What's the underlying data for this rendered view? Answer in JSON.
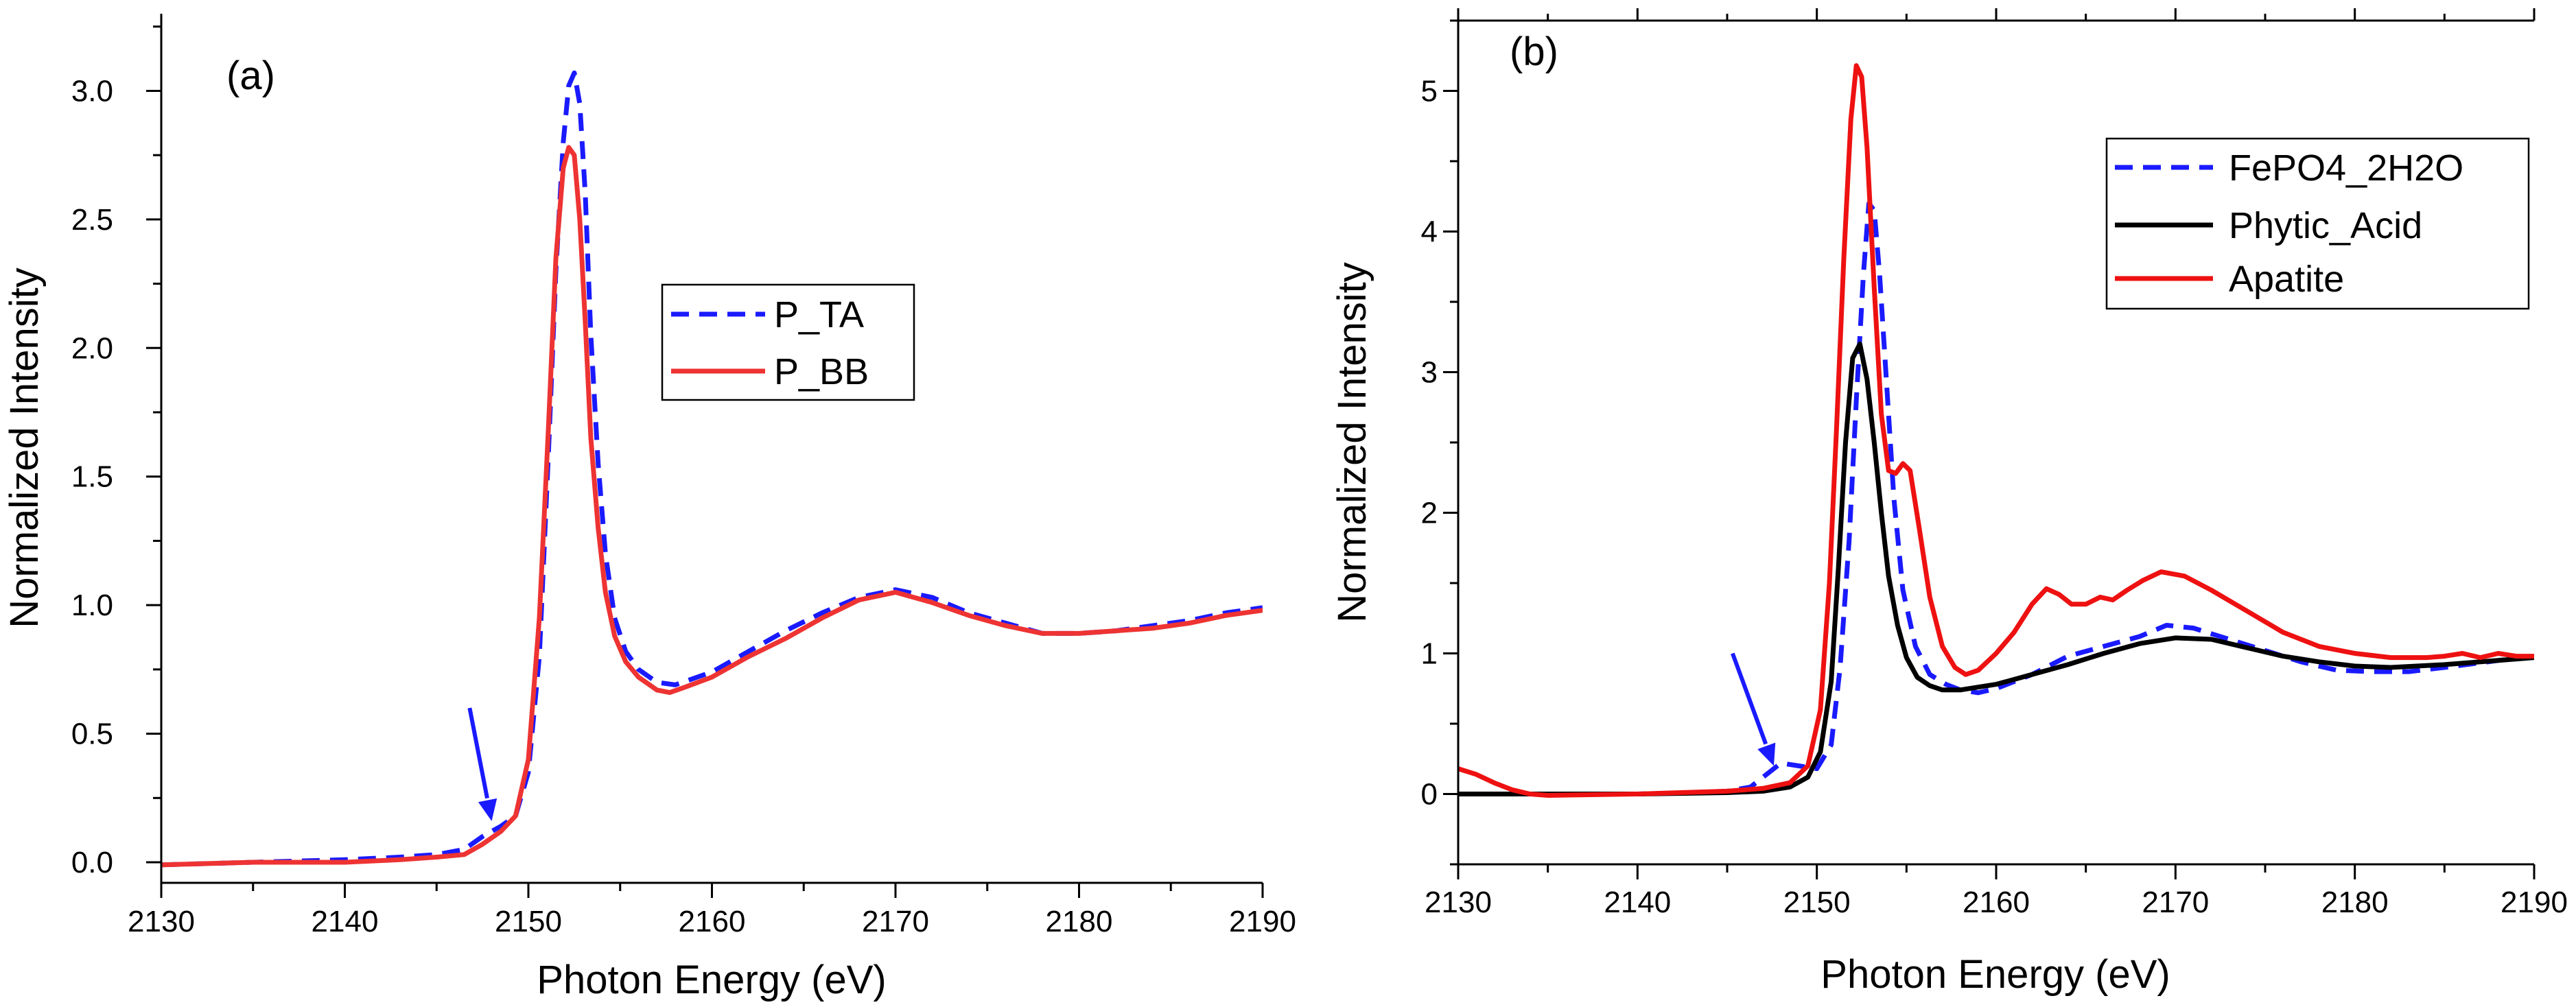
{
  "chart_data": [
    {
      "type": "line",
      "panel_label": "(a)",
      "xlabel": "Photon Energy (eV)",
      "ylabel": "Normalized Intensity",
      "xlim": [
        2130,
        2190
      ],
      "ylim": [
        -0.08,
        3.3
      ],
      "xticks": [
        2130,
        2140,
        2150,
        2160,
        2170,
        2180,
        2190
      ],
      "xtick_labels": [
        "2130",
        "2140",
        "2150",
        "2160",
        "2170",
        "2180",
        "2190"
      ],
      "yticks": [
        0.0,
        0.5,
        1.0,
        1.5,
        2.0,
        2.5,
        3.0
      ],
      "ytick_labels": [
        "0.0",
        "0.5",
        "1.0",
        "1.5",
        "2.0",
        "2.5",
        "3.0"
      ],
      "legend_position": "center-right",
      "annotations": [
        {
          "type": "arrow",
          "from": [
            2146.8,
            0.6
          ],
          "to": [
            2148.0,
            0.16
          ],
          "color": "#1a1aff"
        }
      ],
      "series": [
        {
          "name": "P_TA",
          "color": "#1a1aff",
          "dash": "dashed",
          "x": [
            2130,
            2135,
            2140,
            2143,
            2145,
            2146.5,
            2147.5,
            2148.5,
            2149.3,
            2150,
            2150.6,
            2151.1,
            2151.5,
            2151.9,
            2152.2,
            2152.5,
            2152.8,
            2153.1,
            2153.4,
            2153.8,
            2154.2,
            2154.7,
            2155.3,
            2156,
            2157,
            2158,
            2160,
            2162,
            2164,
            2166,
            2168,
            2170,
            2172,
            2174,
            2176,
            2178,
            2180,
            2182,
            2184,
            2186,
            2188,
            2190
          ],
          "y": [
            -0.01,
            0.0,
            0.01,
            0.02,
            0.03,
            0.05,
            0.1,
            0.14,
            0.18,
            0.35,
            0.8,
            1.6,
            2.3,
            2.8,
            3.02,
            3.07,
            2.95,
            2.6,
            2.05,
            1.55,
            1.2,
            0.95,
            0.82,
            0.75,
            0.7,
            0.69,
            0.74,
            0.82,
            0.9,
            0.97,
            1.03,
            1.06,
            1.03,
            0.97,
            0.93,
            0.89,
            0.89,
            0.9,
            0.92,
            0.94,
            0.97,
            0.99
          ]
        },
        {
          "name": "P_BB",
          "color": "#ee3333",
          "dash": "solid",
          "x": [
            2130,
            2135,
            2140,
            2143,
            2145,
            2146.5,
            2147.5,
            2148.5,
            2149.3,
            2150,
            2150.6,
            2151.1,
            2151.5,
            2151.9,
            2152.2,
            2152.5,
            2152.8,
            2153.1,
            2153.4,
            2153.8,
            2154.2,
            2154.7,
            2155.3,
            2156,
            2157,
            2157.7,
            2158.5,
            2160,
            2162,
            2164,
            2166,
            2168,
            2170,
            2172,
            2174,
            2176,
            2178,
            2180,
            2182,
            2184,
            2186,
            2188,
            2190
          ],
          "y": [
            -0.01,
            0.0,
            0.0,
            0.01,
            0.02,
            0.03,
            0.07,
            0.12,
            0.18,
            0.4,
            0.95,
            1.7,
            2.35,
            2.7,
            2.78,
            2.75,
            2.5,
            2.1,
            1.65,
            1.3,
            1.05,
            0.88,
            0.78,
            0.72,
            0.67,
            0.66,
            0.68,
            0.72,
            0.8,
            0.87,
            0.95,
            1.02,
            1.05,
            1.01,
            0.96,
            0.92,
            0.89,
            0.89,
            0.9,
            0.91,
            0.93,
            0.96,
            0.98
          ]
        }
      ]
    },
    {
      "type": "line",
      "panel_label": "(b)",
      "xlabel": "Photon Energy (eV)",
      "ylabel": "Normalized Intensity",
      "xlim": [
        2130,
        2190
      ],
      "ylim": [
        -0.5,
        5.5
      ],
      "xticks": [
        2130,
        2140,
        2150,
        2160,
        2170,
        2180,
        2190
      ],
      "xtick_labels": [
        "2130",
        "2140",
        "2150",
        "2160",
        "2170",
        "2180",
        "2190"
      ],
      "yticks": [
        0,
        1,
        2,
        3,
        4,
        5
      ],
      "ytick_labels": [
        "0",
        "1",
        "2",
        "3",
        "4",
        "5"
      ],
      "legend_position": "top-right",
      "annotations": [
        {
          "type": "arrow",
          "from": [
            2145.3,
            1.0
          ],
          "to": [
            2147.6,
            0.2
          ],
          "color": "#1a1aff"
        }
      ],
      "series": [
        {
          "name": "FePO4_2H2O",
          "color": "#1a1aff",
          "dash": "dashed",
          "x": [
            2130,
            2135,
            2140,
            2143,
            2145,
            2146.3,
            2147,
            2148,
            2149,
            2150,
            2150.8,
            2151.3,
            2151.8,
            2152.2,
            2152.6,
            2152.9,
            2153.2,
            2153.5,
            2153.9,
            2154.3,
            2154.8,
            2155.5,
            2156.3,
            2157.2,
            2158,
            2159,
            2160,
            2162,
            2164,
            2166,
            2168,
            2169.5,
            2171,
            2173,
            2175,
            2177,
            2179,
            2181,
            2183,
            2185,
            2188,
            2190
          ],
          "y": [
            0.0,
            0.0,
            0.0,
            0.01,
            0.02,
            0.05,
            0.12,
            0.22,
            0.2,
            0.18,
            0.35,
            0.9,
            1.8,
            2.8,
            3.7,
            4.2,
            4.15,
            3.7,
            2.9,
            2.1,
            1.45,
            1.05,
            0.85,
            0.78,
            0.74,
            0.72,
            0.75,
            0.85,
            0.98,
            1.05,
            1.12,
            1.2,
            1.18,
            1.1,
            1.02,
            0.94,
            0.88,
            0.87,
            0.87,
            0.9,
            0.95,
            0.98
          ]
        },
        {
          "name": "Phytic_Acid",
          "color": "#000000",
          "dash": "solid",
          "x": [
            2130,
            2135,
            2140,
            2145,
            2147,
            2148.5,
            2149.5,
            2150.2,
            2150.8,
            2151.2,
            2151.6,
            2152,
            2152.4,
            2152.8,
            2153.2,
            2153.6,
            2154,
            2154.5,
            2155,
            2155.6,
            2156.3,
            2157,
            2158,
            2160,
            2162,
            2164,
            2166,
            2168,
            2170,
            2172,
            2174,
            2176,
            2178,
            2180,
            2182,
            2185,
            2188,
            2190
          ],
          "y": [
            0.0,
            0.0,
            0.0,
            0.01,
            0.02,
            0.05,
            0.12,
            0.3,
            0.8,
            1.6,
            2.5,
            3.1,
            3.2,
            2.95,
            2.5,
            2.0,
            1.55,
            1.2,
            0.97,
            0.83,
            0.77,
            0.74,
            0.74,
            0.78,
            0.85,
            0.92,
            1.0,
            1.07,
            1.11,
            1.1,
            1.04,
            0.98,
            0.94,
            0.91,
            0.9,
            0.92,
            0.95,
            0.97
          ]
        },
        {
          "name": "Apatite",
          "color": "#ee1111",
          "dash": "solid",
          "x": [
            2130,
            2131,
            2132,
            2133,
            2134,
            2135,
            2140,
            2145,
            2147,
            2148.5,
            2149.5,
            2150.2,
            2150.7,
            2151.1,
            2151.5,
            2151.9,
            2152.2,
            2152.5,
            2152.8,
            2153.2,
            2153.6,
            2154,
            2154.4,
            2154.8,
            2155.2,
            2155.7,
            2156.3,
            2157,
            2157.7,
            2158.3,
            2159,
            2160,
            2161,
            2162,
            2162.8,
            2163.5,
            2164.2,
            2165,
            2165.8,
            2166.5,
            2167.3,
            2168.2,
            2169.2,
            2170.5,
            2172,
            2174,
            2176,
            2178,
            2180,
            2182,
            2184,
            2185,
            2186,
            2187,
            2188,
            2189,
            2190
          ],
          "y": [
            0.18,
            0.14,
            0.08,
            0.03,
            0.0,
            -0.01,
            0.0,
            0.02,
            0.04,
            0.08,
            0.2,
            0.6,
            1.5,
            2.6,
            3.8,
            4.8,
            5.18,
            5.1,
            4.6,
            3.6,
            2.7,
            2.3,
            2.28,
            2.35,
            2.3,
            1.9,
            1.4,
            1.05,
            0.9,
            0.85,
            0.88,
            1.0,
            1.15,
            1.35,
            1.46,
            1.42,
            1.35,
            1.35,
            1.4,
            1.38,
            1.45,
            1.52,
            1.58,
            1.55,
            1.45,
            1.3,
            1.15,
            1.05,
            1.0,
            0.97,
            0.97,
            0.98,
            1.0,
            0.97,
            1.0,
            0.98,
            0.98
          ]
        }
      ]
    }
  ]
}
